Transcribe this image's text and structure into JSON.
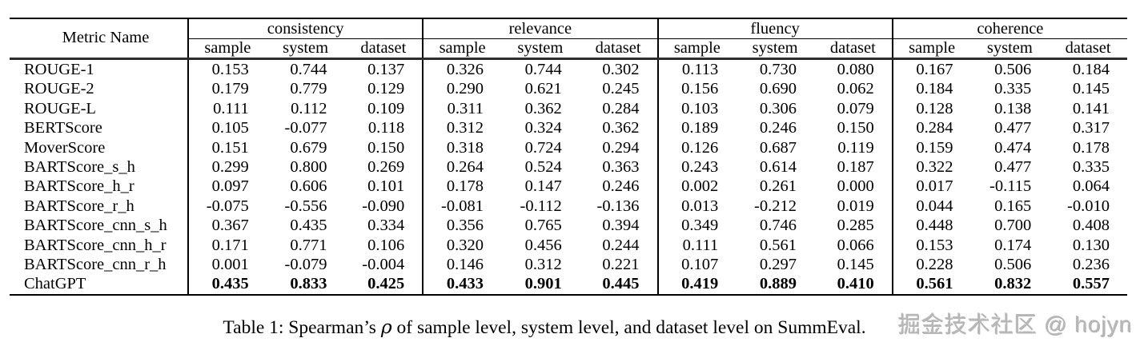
{
  "table": {
    "corner_label": "Metric Name",
    "groups": [
      {
        "label": "consistency",
        "columns": [
          "sample",
          "system",
          "dataset"
        ]
      },
      {
        "label": "relevance",
        "columns": [
          "sample",
          "system",
          "dataset"
        ]
      },
      {
        "label": "fluency",
        "columns": [
          "sample",
          "system",
          "dataset"
        ]
      },
      {
        "label": "coherence",
        "columns": [
          "sample",
          "system",
          "dataset"
        ]
      }
    ],
    "rows": [
      {
        "metric": "ROUGE-1",
        "bold": false,
        "values": [
          "0.153",
          "0.744",
          "0.137",
          "0.326",
          "0.744",
          "0.302",
          "0.113",
          "0.730",
          "0.080",
          "0.167",
          "0.506",
          "0.184"
        ]
      },
      {
        "metric": "ROUGE-2",
        "bold": false,
        "values": [
          "0.179",
          "0.779",
          "0.129",
          "0.290",
          "0.621",
          "0.245",
          "0.156",
          "0.690",
          "0.062",
          "0.184",
          "0.335",
          "0.145"
        ]
      },
      {
        "metric": "ROUGE-L",
        "bold": false,
        "values": [
          "0.111",
          "0.112",
          "0.109",
          "0.311",
          "0.362",
          "0.284",
          "0.103",
          "0.306",
          "0.079",
          "0.128",
          "0.138",
          "0.141"
        ]
      },
      {
        "metric": "BERTScore",
        "bold": false,
        "values": [
          "0.105",
          "-0.077",
          "0.118",
          "0.312",
          "0.324",
          "0.362",
          "0.189",
          "0.246",
          "0.150",
          "0.284",
          "0.477",
          "0.317"
        ]
      },
      {
        "metric": "MoverScore",
        "bold": false,
        "values": [
          "0.151",
          "0.679",
          "0.150",
          "0.318",
          "0.724",
          "0.294",
          "0.126",
          "0.687",
          "0.119",
          "0.159",
          "0.474",
          "0.178"
        ]
      },
      {
        "metric": "BARTScore_s_h",
        "bold": false,
        "values": [
          "0.299",
          "0.800",
          "0.269",
          "0.264",
          "0.524",
          "0.363",
          "0.243",
          "0.614",
          "0.187",
          "0.322",
          "0.477",
          "0.335"
        ]
      },
      {
        "metric": "BARTScore_h_r",
        "bold": false,
        "values": [
          "0.097",
          "0.606",
          "0.101",
          "0.178",
          "0.147",
          "0.246",
          "0.002",
          "0.261",
          "0.000",
          "0.017",
          "-0.115",
          "0.064"
        ]
      },
      {
        "metric": "BARTScore_r_h",
        "bold": false,
        "values": [
          "-0.075",
          "-0.556",
          "-0.090",
          "-0.081",
          "-0.112",
          "-0.136",
          "0.013",
          "-0.212",
          "0.019",
          "0.044",
          "0.165",
          "-0.010"
        ]
      },
      {
        "metric": "BARTScore_cnn_s_h",
        "bold": false,
        "values": [
          "0.367",
          "0.435",
          "0.334",
          "0.356",
          "0.765",
          "0.394",
          "0.349",
          "0.746",
          "0.285",
          "0.448",
          "0.700",
          "0.408"
        ]
      },
      {
        "metric": "BARTScore_cnn_h_r",
        "bold": false,
        "values": [
          "0.171",
          "0.771",
          "0.106",
          "0.320",
          "0.456",
          "0.244",
          "0.111",
          "0.561",
          "0.066",
          "0.153",
          "0.174",
          "0.130"
        ]
      },
      {
        "metric": "BARTScore_cnn_r_h",
        "bold": false,
        "values": [
          "0.001",
          "-0.079",
          "-0.004",
          "0.146",
          "0.312",
          "0.221",
          "0.107",
          "0.297",
          "0.145",
          "0.228",
          "0.506",
          "0.236"
        ]
      },
      {
        "metric": "ChatGPT",
        "bold": true,
        "values": [
          "0.435",
          "0.833",
          "0.425",
          "0.433",
          "0.901",
          "0.445",
          "0.419",
          "0.889",
          "0.410",
          "0.561",
          "0.832",
          "0.557"
        ]
      }
    ]
  },
  "caption": {
    "before": "Table 1: Spearman’s ",
    "symbol": "ρ",
    "after": " of sample level, system level, and dataset level on SummEval."
  },
  "watermark": "掘金技术社区 @ hojyn"
}
